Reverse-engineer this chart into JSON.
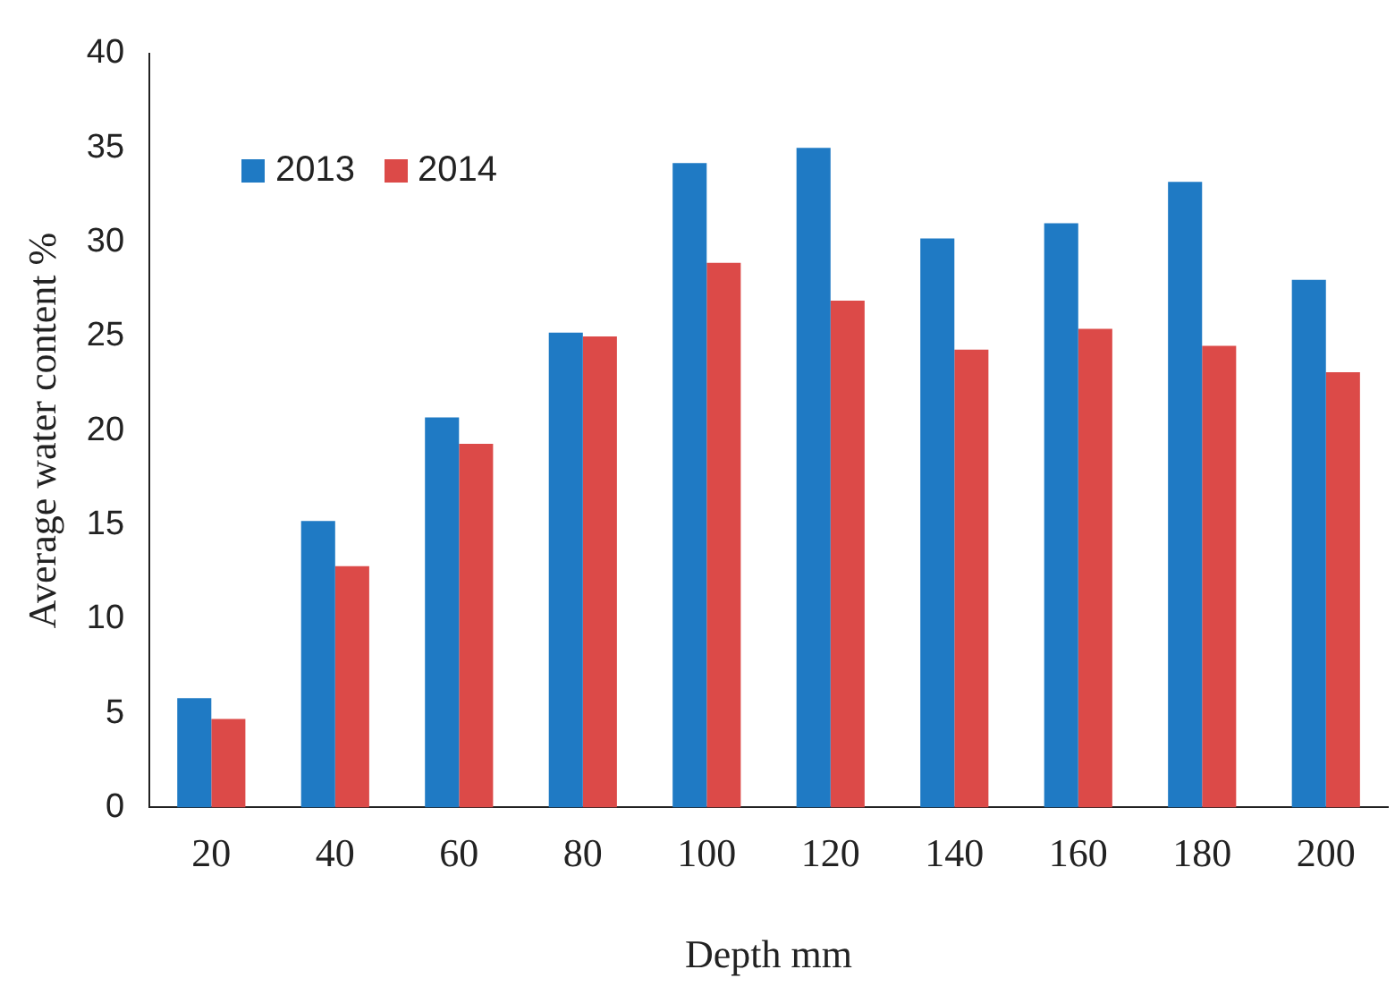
{
  "chart_data": {
    "type": "bar",
    "xlabel": "Depth mm",
    "ylabel": "Average water content %",
    "categories": [
      "20",
      "40",
      "60",
      "80",
      "100",
      "120",
      "140",
      "160",
      "180",
      "200"
    ],
    "series": [
      {
        "name": "2013",
        "color": "#1f7ac4",
        "values": [
          5.8,
          15.2,
          20.7,
          25.2,
          34.2,
          35.0,
          30.2,
          31.0,
          33.2,
          28.0
        ]
      },
      {
        "name": "2014",
        "color": "#dc4a48",
        "values": [
          4.7,
          12.8,
          19.3,
          25.0,
          28.9,
          26.9,
          24.3,
          25.4,
          24.5,
          23.1
        ]
      }
    ],
    "ylim": [
      0,
      40
    ],
    "yticks": [
      0,
      5,
      10,
      15,
      20,
      25,
      30,
      35,
      40
    ],
    "grid": false,
    "legend": "top left"
  }
}
